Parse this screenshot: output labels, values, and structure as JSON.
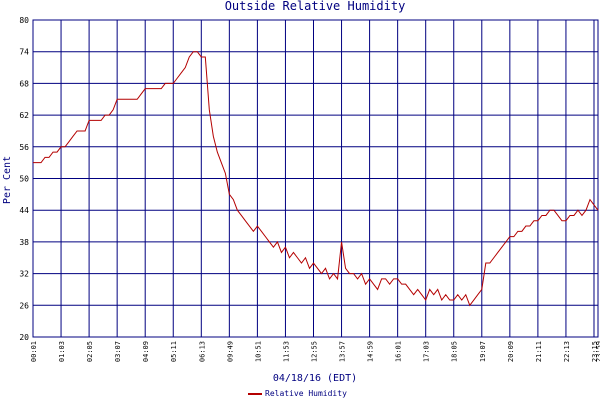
{
  "chart_data": {
    "type": "line",
    "title": "Outside Relative Humidity",
    "x_label": "04/18/16 (EDT)",
    "y_label": "Per Cent",
    "categories": [
      "00:01",
      null,
      null,
      null,
      null,
      null,
      null,
      "01:03",
      null,
      null,
      null,
      null,
      null,
      null,
      "02:05",
      null,
      null,
      null,
      null,
      null,
      null,
      "03:07",
      null,
      null,
      null,
      null,
      null,
      null,
      "04:09",
      null,
      null,
      null,
      null,
      null,
      null,
      "05:11",
      null,
      null,
      null,
      null,
      null,
      null,
      "06:13",
      null,
      null,
      null,
      null,
      null,
      null,
      "09:49",
      null,
      null,
      null,
      null,
      null,
      null,
      "10:51",
      null,
      null,
      null,
      null,
      null,
      null,
      "11:53",
      null,
      null,
      null,
      null,
      null,
      null,
      "12:55",
      null,
      null,
      null,
      null,
      null,
      null,
      "13:57",
      null,
      null,
      null,
      null,
      null,
      null,
      "14:59",
      null,
      null,
      null,
      null,
      null,
      null,
      "16:01",
      null,
      null,
      null,
      null,
      null,
      null,
      "17:03",
      null,
      null,
      null,
      null,
      null,
      null,
      "18:05",
      null,
      null,
      null,
      null,
      null,
      null,
      "19:07",
      null,
      null,
      null,
      null,
      null,
      null,
      "20:09",
      null,
      null,
      null,
      null,
      null,
      null,
      "21:11",
      null,
      null,
      null,
      null,
      null,
      null,
      "22:13",
      null,
      null,
      null,
      null,
      null,
      null,
      "23:15",
      "23:59"
    ],
    "series": [
      {
        "name": "Relative Humidity",
        "color": "#b40000",
        "values": [
          53,
          53,
          53,
          54,
          54,
          55,
          55,
          56,
          56,
          57,
          58,
          59,
          59,
          59,
          61,
          61,
          61,
          61,
          62,
          62,
          63,
          65,
          65,
          65,
          65,
          65,
          65,
          66,
          67,
          67,
          67,
          67,
          67,
          68,
          68,
          68,
          69,
          70,
          71,
          73,
          74,
          74,
          73,
          73,
          63,
          58,
          55,
          53,
          51,
          47,
          46,
          44,
          43,
          42,
          41,
          40,
          41,
          40,
          39,
          38,
          37,
          38,
          36,
          37,
          35,
          36,
          35,
          34,
          35,
          33,
          34,
          33,
          32,
          33,
          31,
          32,
          31,
          38,
          33,
          32,
          32,
          31,
          32,
          30,
          31,
          30,
          29,
          31,
          31,
          30,
          31,
          31,
          30,
          30,
          29,
          28,
          29,
          28,
          27,
          29,
          28,
          29,
          27,
          28,
          27,
          27,
          28,
          27,
          28,
          26,
          27,
          28,
          29,
          34,
          34,
          35,
          36,
          37,
          38,
          39,
          39,
          40,
          40,
          41,
          41,
          42,
          42,
          43,
          43,
          44,
          44,
          43,
          42,
          42,
          43,
          43,
          44,
          43,
          44,
          46,
          45,
          44
        ]
      }
    ],
    "ylim": [
      20,
      80
    ],
    "yticks": [
      20,
      26,
      32,
      38,
      44,
      50,
      56,
      62,
      68,
      74,
      80
    ],
    "grid": true,
    "grid_color": "#000080"
  }
}
